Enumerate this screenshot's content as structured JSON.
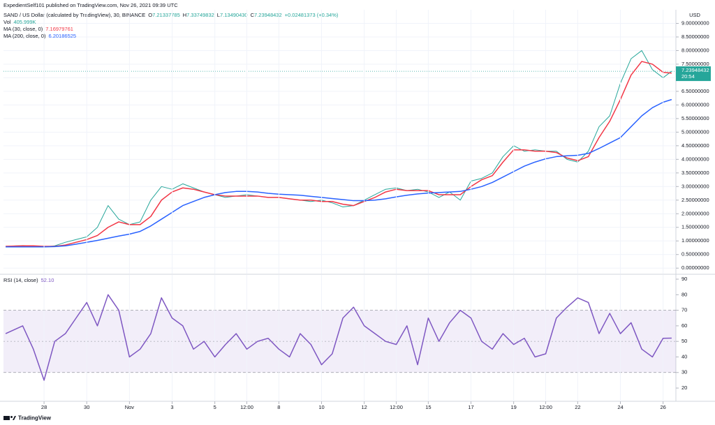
{
  "header": "ExpedientSelf101 published on TradingView.com, Nov 26, 2021 09:39 UTC",
  "footer": "TradingView",
  "chart_data": [
    {
      "type": "line",
      "title": "SAND / US Dollar (calculated by TradingView), 30, BINANCE",
      "ohlc": [
        "O",
        "7.21337785",
        "H",
        "7.33749832",
        "L",
        "7.13490430",
        "C",
        "7.23948432",
        "+0.02481373 (+0.34%)"
      ],
      "volume_label": "Vol",
      "volume": "405.999K",
      "currency": "USD",
      "last_price": 7.23948432,
      "countdown": "20:54",
      "x": [
        -0.8,
        0,
        0.5,
        1,
        1.5,
        2,
        2.5,
        3,
        3.5,
        4,
        4.5,
        5,
        5.5,
        6,
        6.5,
        7,
        7.5,
        8,
        8.5,
        9,
        9.5,
        10,
        10.5,
        11,
        11.5,
        12,
        12.5,
        13,
        13.5,
        14,
        14.5,
        15,
        15.5,
        16,
        16.5,
        17,
        17.5,
        18,
        18.5,
        19,
        19.5,
        20,
        20.5,
        21,
        21.5,
        22,
        22.5,
        23,
        23.5,
        24,
        24.5,
        25,
        25.5,
        26,
        26.5,
        27,
        27.5,
        28,
        28.5,
        29,
        29.5,
        30,
        30.4
      ],
      "series": [
        {
          "color": "#26a69a",
          "values": [
            0.8,
            0.83,
            0.82,
            0.78,
            0.82,
            0.95,
            1.05,
            1.15,
            1.5,
            2.3,
            1.8,
            1.6,
            1.7,
            2.5,
            3.0,
            2.9,
            3.1,
            2.95,
            2.8,
            2.7,
            2.6,
            2.65,
            2.7,
            2.65,
            2.6,
            2.6,
            2.55,
            2.5,
            2.45,
            2.5,
            2.4,
            2.25,
            2.3,
            2.5,
            2.7,
            2.9,
            2.95,
            2.85,
            2.9,
            2.8,
            2.6,
            2.8,
            2.5,
            3.2,
            3.3,
            3.5,
            4.1,
            4.5,
            4.3,
            4.35,
            4.3,
            4.3,
            4.0,
            3.9,
            4.3,
            5.2,
            5.6,
            6.8,
            7.7,
            8.0,
            7.3,
            7.0,
            7.24
          ]
        },
        {
          "name": "MA (30, close, 0)",
          "legend_value": "7.16979761",
          "color": "#f23645",
          "values": [
            0.8,
            0.82,
            0.82,
            0.8,
            0.8,
            0.85,
            0.95,
            1.05,
            1.2,
            1.5,
            1.7,
            1.6,
            1.6,
            1.9,
            2.5,
            2.8,
            2.95,
            2.9,
            2.8,
            2.7,
            2.65,
            2.65,
            2.65,
            2.65,
            2.6,
            2.6,
            2.55,
            2.5,
            2.5,
            2.45,
            2.45,
            2.35,
            2.3,
            2.45,
            2.6,
            2.8,
            2.9,
            2.85,
            2.85,
            2.85,
            2.7,
            2.7,
            2.7,
            3.0,
            3.25,
            3.4,
            3.9,
            4.35,
            4.35,
            4.3,
            4.3,
            4.25,
            4.05,
            3.95,
            4.1,
            4.8,
            5.4,
            6.2,
            7.1,
            7.6,
            7.5,
            7.2,
            7.17
          ]
        },
        {
          "name": "MA (200, close, 0)",
          "legend_value": "6.20186525",
          "color": "#2962ff",
          "values": [
            0.78,
            0.78,
            0.78,
            0.78,
            0.79,
            0.82,
            0.88,
            0.95,
            1.02,
            1.1,
            1.18,
            1.25,
            1.35,
            1.55,
            1.8,
            2.05,
            2.3,
            2.45,
            2.6,
            2.7,
            2.78,
            2.82,
            2.82,
            2.8,
            2.75,
            2.72,
            2.7,
            2.68,
            2.64,
            2.6,
            2.56,
            2.52,
            2.48,
            2.48,
            2.5,
            2.55,
            2.62,
            2.68,
            2.73,
            2.76,
            2.78,
            2.8,
            2.82,
            2.9,
            3.0,
            3.15,
            3.35,
            3.55,
            3.75,
            3.9,
            4.02,
            4.1,
            4.13,
            4.15,
            4.22,
            4.4,
            4.6,
            4.8,
            5.2,
            5.6,
            5.9,
            6.1,
            6.2
          ]
        }
      ],
      "xlim": [
        -0.9,
        30.6
      ],
      "ylim": [
        -0.2,
        9.5
      ],
      "yticks": [
        {
          "value": 0,
          "label": "0.00000000"
        },
        {
          "value": 0.5,
          "label": "0.50000000"
        },
        {
          "value": 1,
          "label": "1.00000000"
        },
        {
          "value": 1.5,
          "label": "1.50000000"
        },
        {
          "value": 2,
          "label": "2.00000000"
        },
        {
          "value": 2.5,
          "label": "2.50000000"
        },
        {
          "value": 3,
          "label": "3.00000000"
        },
        {
          "value": 3.5,
          "label": "3.50000000"
        },
        {
          "value": 4,
          "label": "4.00000000"
        },
        {
          "value": 4.5,
          "label": "4.50000000"
        },
        {
          "value": 5,
          "label": "5.00000000"
        },
        {
          "value": 5.5,
          "label": "5.50000000"
        },
        {
          "value": 6,
          "label": "6.00000000"
        },
        {
          "value": 6.5,
          "label": "6.50000000"
        },
        {
          "value": 7,
          "label": "7.00000000"
        },
        {
          "value": 7.5,
          "label": "7.50000000"
        },
        {
          "value": 8,
          "label": "8.00000000"
        },
        {
          "value": 8.5,
          "label": "8.50000000"
        },
        {
          "value": 9,
          "label": "9.00000000"
        }
      ],
      "grid": true
    },
    {
      "type": "line",
      "x": [
        -0.8,
        0,
        0.5,
        1,
        1.5,
        2,
        2.5,
        3,
        3.5,
        4,
        4.5,
        5,
        5.5,
        6,
        6.5,
        7,
        7.5,
        8,
        8.5,
        9,
        9.5,
        10,
        10.5,
        11,
        11.5,
        12,
        12.5,
        13,
        13.5,
        14,
        14.5,
        15,
        15.5,
        16,
        16.5,
        17,
        17.5,
        18,
        18.5,
        19,
        19.5,
        20,
        20.5,
        21,
        21.5,
        22,
        22.5,
        23,
        23.5,
        24,
        24.5,
        25,
        25.5,
        26,
        26.5,
        27,
        27.5,
        28,
        28.5,
        29,
        29.5,
        30,
        30.4
      ],
      "series": [
        {
          "name": "RSI (14, close)",
          "legend_value": "52.10",
          "color": "#7e57c2",
          "values": [
            55,
            60,
            45,
            25,
            50,
            55,
            65,
            75,
            60,
            80,
            70,
            40,
            45,
            55,
            78,
            65,
            60,
            45,
            50,
            40,
            48,
            55,
            45,
            50,
            52,
            45,
            40,
            55,
            48,
            35,
            42,
            65,
            72,
            60,
            55,
            50,
            48,
            60,
            35,
            65,
            50,
            62,
            70,
            65,
            50,
            45,
            55,
            48,
            52,
            40,
            42,
            65,
            72,
            78,
            75,
            55,
            68,
            55,
            62,
            45,
            40,
            52,
            52.1
          ]
        }
      ],
      "band": [
        30,
        70
      ],
      "midline": 50,
      "xlim": [
        -0.9,
        30.6
      ],
      "ylim": [
        11.5,
        92.7
      ],
      "yticks": [
        20,
        30,
        40,
        50,
        60,
        70,
        80,
        90
      ],
      "xticks": [
        {
          "value": 1,
          "label": "28"
        },
        {
          "value": 3,
          "label": "30"
        },
        {
          "value": 5,
          "label": "Nov"
        },
        {
          "value": 7,
          "label": "3"
        },
        {
          "value": 9,
          "label": "5"
        },
        {
          "value": 10.5,
          "label": "12:00"
        },
        {
          "value": 12,
          "label": "8"
        },
        {
          "value": 14,
          "label": "10"
        },
        {
          "value": 16,
          "label": "12"
        },
        {
          "value": 17.5,
          "label": "12:00"
        },
        {
          "value": 19,
          "label": "15"
        },
        {
          "value": 21,
          "label": "17"
        },
        {
          "value": 23,
          "label": "19"
        },
        {
          "value": 24.5,
          "label": "12:00"
        },
        {
          "value": 26,
          "label": "22"
        },
        {
          "value": 28,
          "label": "24"
        },
        {
          "value": 30,
          "label": "26"
        }
      ],
      "grid": true
    }
  ]
}
